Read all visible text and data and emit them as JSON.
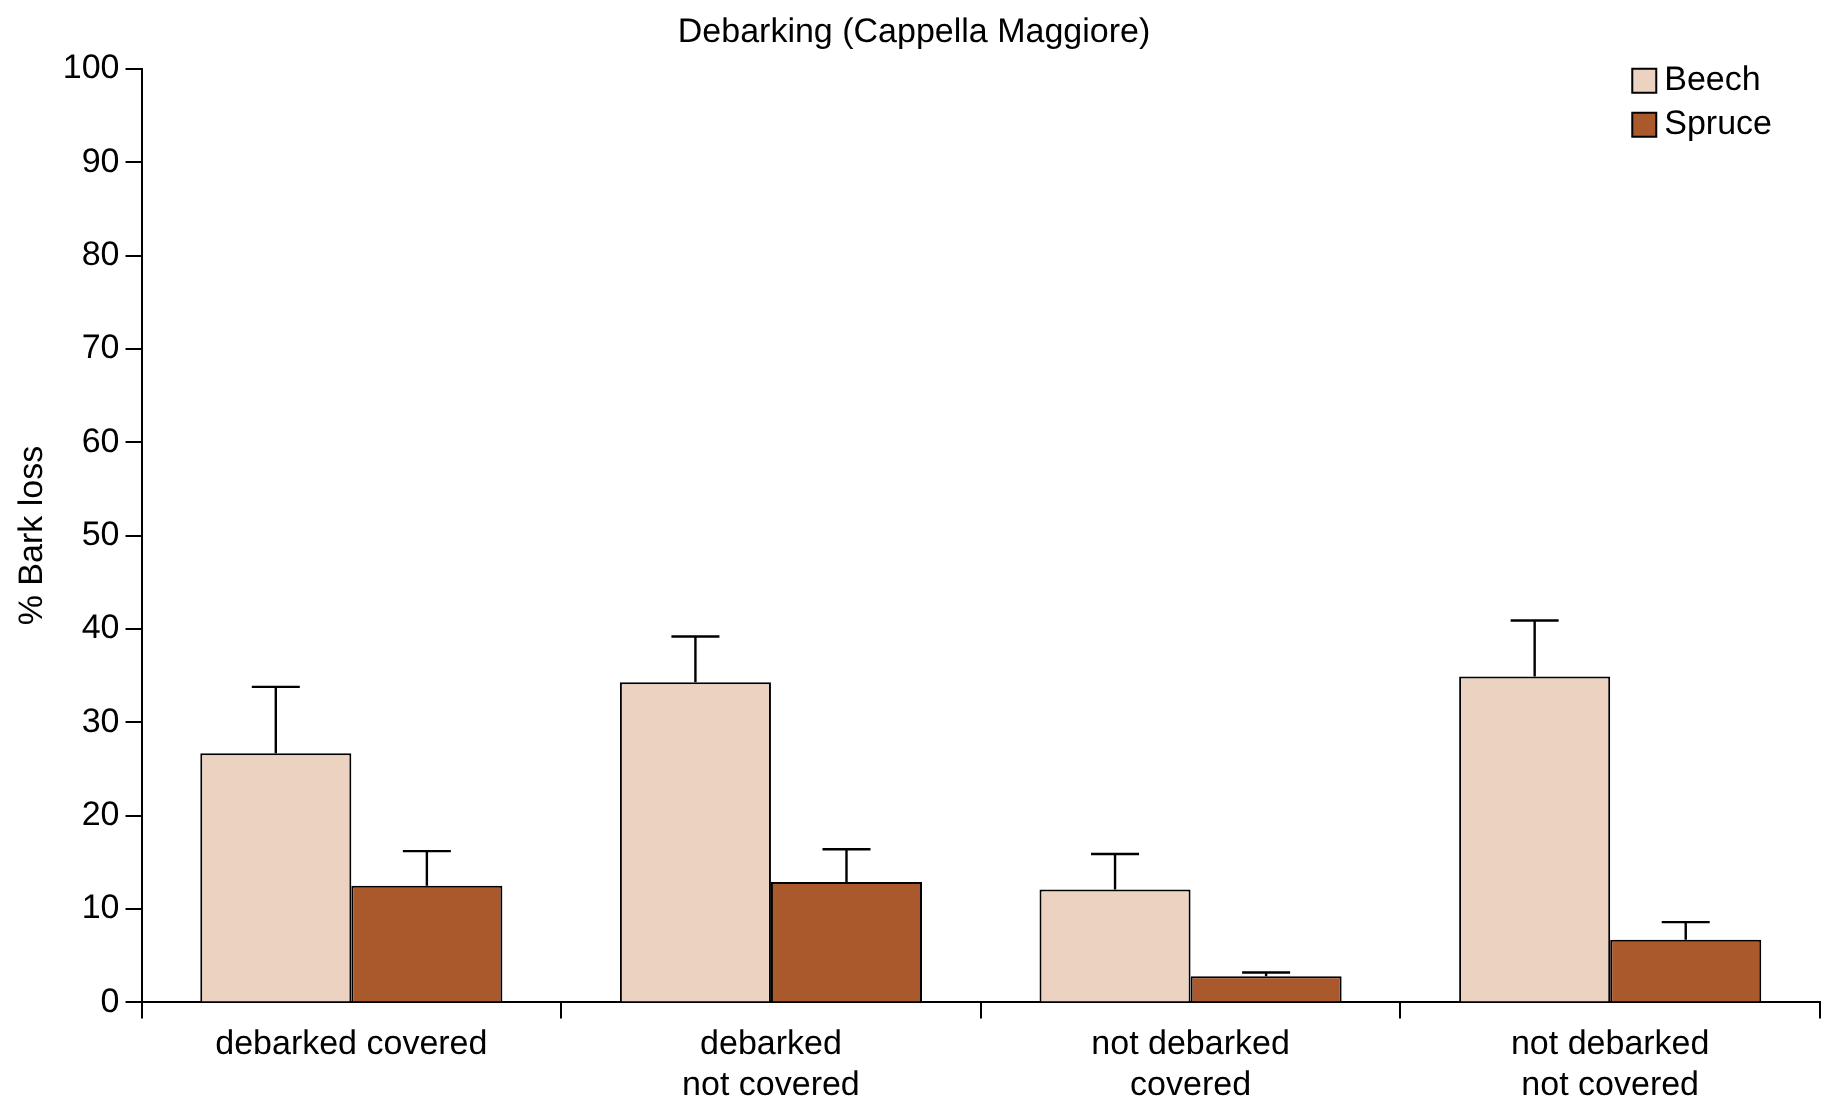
{
  "chart_data": {
    "type": "bar",
    "title": "Debarking (Cappella Maggiore)",
    "ylabel": "% Bark loss",
    "categories": [
      "debarked covered",
      "debarked\nnot covered",
      "not debarked\ncovered",
      "not debarked\nnot covered"
    ],
    "series": [
      {
        "name": "Beech",
        "color": "#ecd3c1",
        "values": [
          26.7,
          34.3,
          12.1,
          34.9
        ],
        "errors": [
          [
            26.7,
            33.8
          ],
          [
            34.3,
            39.2
          ],
          [
            12.1,
            15.9
          ],
          [
            34.9,
            40.9
          ]
        ]
      },
      {
        "name": "Spruce",
        "color": "#a9592b",
        "values": [
          12.5,
          12.9,
          2.8,
          6.7
        ],
        "errors": [
          [
            12.5,
            16.2
          ],
          [
            12.9,
            16.4
          ],
          [
            2.8,
            3.2
          ],
          [
            6.7,
            8.6
          ]
        ]
      }
    ],
    "ylim": [
      0,
      100
    ],
    "yticks": [
      0,
      10,
      20,
      30,
      40,
      50,
      60,
      70,
      80,
      90,
      100
    ],
    "grid": false,
    "legend": "top right"
  }
}
